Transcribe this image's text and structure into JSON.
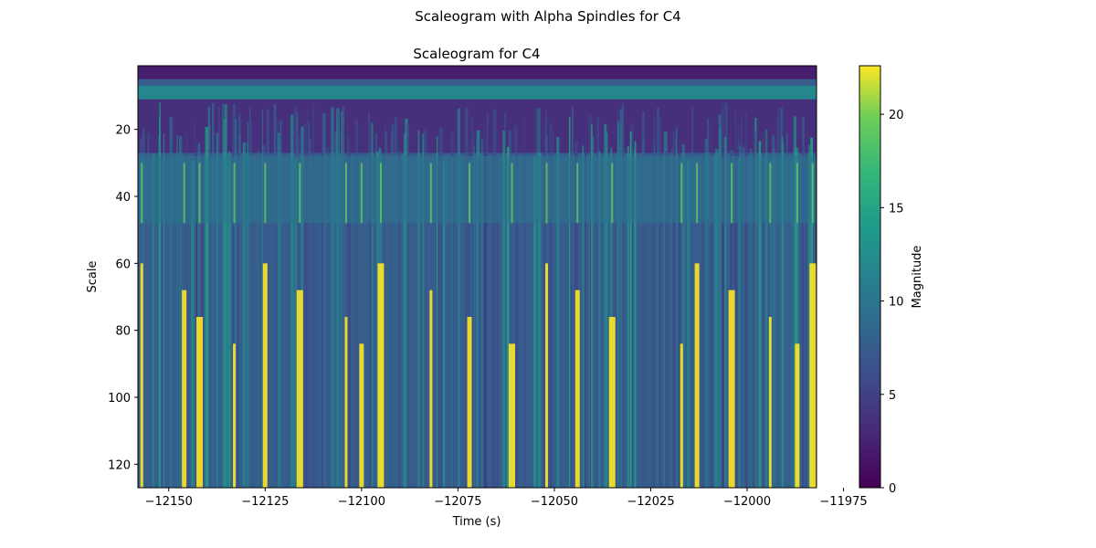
{
  "suptitle": "Scaleogram with Alpha Spindles for C4",
  "chart_data": {
    "type": "heatmap",
    "title": "Scaleogram for C4",
    "xlabel": "Time (s)",
    "ylabel": "Scale",
    "xlim": [
      -12158,
      -11982
    ],
    "ylim": [
      1,
      127
    ],
    "y_inverted": true,
    "xticks": [
      -12150,
      -12125,
      -12100,
      -12075,
      -12050,
      -12025,
      -12000,
      -11975
    ],
    "xtick_labels": [
      "−12150",
      "−12125",
      "−12100",
      "−12075",
      "−12050",
      "−12025",
      "−12000",
      "−11975"
    ],
    "yticks": [
      20,
      40,
      60,
      80,
      100,
      120
    ],
    "ytick_labels": [
      "20",
      "40",
      "60",
      "80",
      "100",
      "120"
    ],
    "colormap": "viridis",
    "colorbar": {
      "label": "Magnitude",
      "range": [
        0,
        22.6
      ],
      "ticks": [
        0,
        5,
        10,
        15,
        20
      ],
      "tick_labels": [
        "0",
        "5",
        "10",
        "15",
        "20"
      ]
    },
    "bands": [
      {
        "scale_range": [
          7,
          11
        ],
        "magnitude": 12
      },
      {
        "scale_range": [
          28,
          48
        ],
        "magnitude": 10
      }
    ],
    "high_magnitude_streaks_time": [
      -12157,
      -12146,
      -12142,
      -12133,
      -12125,
      -12116,
      -12104,
      -12100,
      -12095,
      -12082,
      -12072,
      -12061,
      -12052,
      -12044,
      -12035,
      -12017,
      -12013,
      -12004,
      -11994,
      -11987,
      -11983
    ],
    "grid": false
  }
}
